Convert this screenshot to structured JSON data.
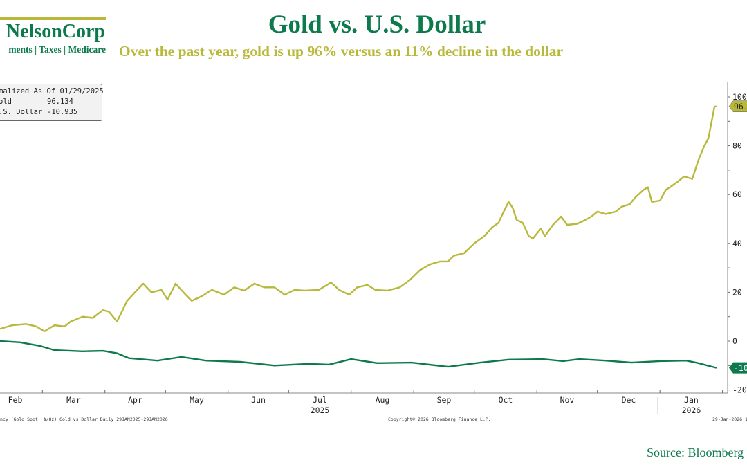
{
  "header": {
    "title": "Gold vs. U.S. Dollar",
    "subtitle": "Over the past year, gold is up 96% versus an 11% decline in the dollar"
  },
  "logo": {
    "name": "NelsonCorp",
    "tagline": "ments | Taxes | Medicare"
  },
  "legend": {
    "heading": "malized As Of 01/29/2025",
    "rows": [
      {
        "label": "old",
        "value": "96.134"
      },
      {
        "label": ".S. Dollar",
        "value": "-10.935"
      }
    ]
  },
  "footer": {
    "left": "ncy (Gold Spot  $/Oz) Gold vs Dollar Daily 29JAN2025-29JAN2026",
    "center": "Copyright© 2026 Bloomberg Finance L.P.",
    "right": "29-Jan-2026 1",
    "source": "Source: Bloomberg"
  },
  "chart_data": {
    "type": "line",
    "title": "Gold vs. U.S. Dollar",
    "subtitle": "Over the past year, gold is up 96% versus an 11% decline in the dollar",
    "xlim": [
      "2025-01-29",
      "2026-01-29"
    ],
    "ylim": [
      -20,
      105
    ],
    "y_axis_position": "right",
    "y_ticks": [
      100,
      80,
      60,
      40,
      20,
      0,
      -20
    ],
    "x_tick_labels": [
      "Feb",
      "Mar",
      "Apr",
      "May",
      "Jun",
      "Jul",
      "Aug",
      "Sep",
      "Oct",
      "Nov",
      "Dec",
      "Jan"
    ],
    "x_year_labels": [
      "2025",
      "2026"
    ],
    "grid": false,
    "colors": {
      "gold": "#b8b83a",
      "dollar": "#0d7a4d"
    },
    "series": [
      {
        "name": "Gold",
        "last_value": "96.134",
        "points": [
          [
            "2025-02-08",
            5
          ],
          [
            "2025-02-14",
            6.5
          ],
          [
            "2025-02-21",
            7
          ],
          [
            "2025-02-26",
            6
          ],
          [
            "2025-03-02",
            4
          ],
          [
            "2025-03-07",
            6.5
          ],
          [
            "2025-03-12",
            6
          ],
          [
            "2025-03-15",
            8
          ],
          [
            "2025-03-21",
            10
          ],
          [
            "2025-03-26",
            9.5
          ],
          [
            "2025-03-31",
            12.7
          ],
          [
            "2025-04-03",
            12
          ],
          [
            "2025-04-07",
            8
          ],
          [
            "2025-04-12",
            16.5
          ],
          [
            "2025-04-17",
            21
          ],
          [
            "2025-04-20",
            23.5
          ],
          [
            "2025-04-24",
            20
          ],
          [
            "2025-04-29",
            21
          ],
          [
            "2025-05-02",
            17
          ],
          [
            "2025-05-06",
            23.5
          ],
          [
            "2025-05-11",
            19
          ],
          [
            "2025-05-14",
            16.5
          ],
          [
            "2025-05-19",
            18.4
          ],
          [
            "2025-05-24",
            21
          ],
          [
            "2025-05-30",
            19
          ],
          [
            "2025-06-04",
            22
          ],
          [
            "2025-06-09",
            20.7
          ],
          [
            "2025-06-14",
            23.5
          ],
          [
            "2025-06-19",
            22
          ],
          [
            "2025-06-24",
            22
          ],
          [
            "2025-06-29",
            19
          ],
          [
            "2025-07-04",
            21
          ],
          [
            "2025-07-09",
            20.7
          ],
          [
            "2025-07-16",
            21
          ],
          [
            "2025-07-22",
            24
          ],
          [
            "2025-07-26",
            21
          ],
          [
            "2025-07-31",
            19
          ],
          [
            "2025-08-04",
            22
          ],
          [
            "2025-08-09",
            23
          ],
          [
            "2025-08-13",
            21
          ],
          [
            "2025-08-19",
            20.7
          ],
          [
            "2025-08-25",
            22
          ],
          [
            "2025-08-30",
            25
          ],
          [
            "2025-09-04",
            29
          ],
          [
            "2025-09-09",
            31.4
          ],
          [
            "2025-09-14",
            32.6
          ],
          [
            "2025-09-18",
            32.6
          ],
          [
            "2025-09-21",
            35
          ],
          [
            "2025-09-26",
            36
          ],
          [
            "2025-10-01",
            40
          ],
          [
            "2025-10-06",
            43
          ],
          [
            "2025-10-10",
            46.7
          ],
          [
            "2025-10-13",
            48.4
          ],
          [
            "2025-10-15",
            52
          ],
          [
            "2025-10-18",
            57
          ],
          [
            "2025-10-20",
            54.6
          ],
          [
            "2025-10-22",
            49.6
          ],
          [
            "2025-10-25",
            48.4
          ],
          [
            "2025-10-28",
            43
          ],
          [
            "2025-10-30",
            42
          ],
          [
            "2025-11-03",
            46
          ],
          [
            "2025-11-05",
            43
          ],
          [
            "2025-11-09",
            47.6
          ],
          [
            "2025-11-13",
            51
          ],
          [
            "2025-11-16",
            47.6
          ],
          [
            "2025-11-21",
            48
          ],
          [
            "2025-11-25",
            49.6
          ],
          [
            "2025-11-28",
            51
          ],
          [
            "2025-12-01",
            53
          ],
          [
            "2025-12-05",
            52
          ],
          [
            "2025-12-10",
            53
          ],
          [
            "2025-12-13",
            55
          ],
          [
            "2025-12-17",
            56
          ],
          [
            "2025-12-20",
            59
          ],
          [
            "2025-12-24",
            62
          ],
          [
            "2025-12-26",
            63
          ],
          [
            "2025-12-28",
            57
          ],
          [
            "2026-01-01",
            57.5
          ],
          [
            "2026-01-04",
            62
          ],
          [
            "2026-01-06",
            63
          ],
          [
            "2026-01-10",
            65.4
          ],
          [
            "2026-01-13",
            67.4
          ],
          [
            "2026-01-17",
            66.4
          ],
          [
            "2026-01-20",
            74
          ],
          [
            "2026-01-23",
            80
          ],
          [
            "2026-01-25",
            83
          ],
          [
            "2026-01-28",
            96
          ],
          [
            "2026-01-29",
            96.134
          ]
        ]
      },
      {
        "name": "U.S. Dollar",
        "last_value": "-10.935",
        "points": [
          [
            "2025-02-08",
            0
          ],
          [
            "2025-02-18",
            -0.5
          ],
          [
            "2025-02-28",
            -2
          ],
          [
            "2025-03-07",
            -3.7
          ],
          [
            "2025-03-21",
            -4.2
          ],
          [
            "2025-03-31",
            -4
          ],
          [
            "2025-04-07",
            -5
          ],
          [
            "2025-04-13",
            -7
          ],
          [
            "2025-04-27",
            -8
          ],
          [
            "2025-05-09",
            -6.5
          ],
          [
            "2025-05-21",
            -8
          ],
          [
            "2025-06-07",
            -8.5
          ],
          [
            "2025-06-24",
            -10
          ],
          [
            "2025-07-11",
            -9.3
          ],
          [
            "2025-07-21",
            -9.6
          ],
          [
            "2025-08-01",
            -7.4
          ],
          [
            "2025-08-14",
            -9
          ],
          [
            "2025-08-31",
            -8.8
          ],
          [
            "2025-09-18",
            -10.5
          ],
          [
            "2025-10-04",
            -8.8
          ],
          [
            "2025-10-18",
            -7.6
          ],
          [
            "2025-11-04",
            -7.4
          ],
          [
            "2025-11-14",
            -8.2
          ],
          [
            "2025-11-22",
            -7.4
          ],
          [
            "2025-12-05",
            -8
          ],
          [
            "2025-12-18",
            -8.8
          ],
          [
            "2026-01-01",
            -8.2
          ],
          [
            "2026-01-14",
            -8
          ],
          [
            "2026-01-20",
            -9
          ],
          [
            "2026-01-29",
            -10.935
          ]
        ]
      }
    ]
  }
}
